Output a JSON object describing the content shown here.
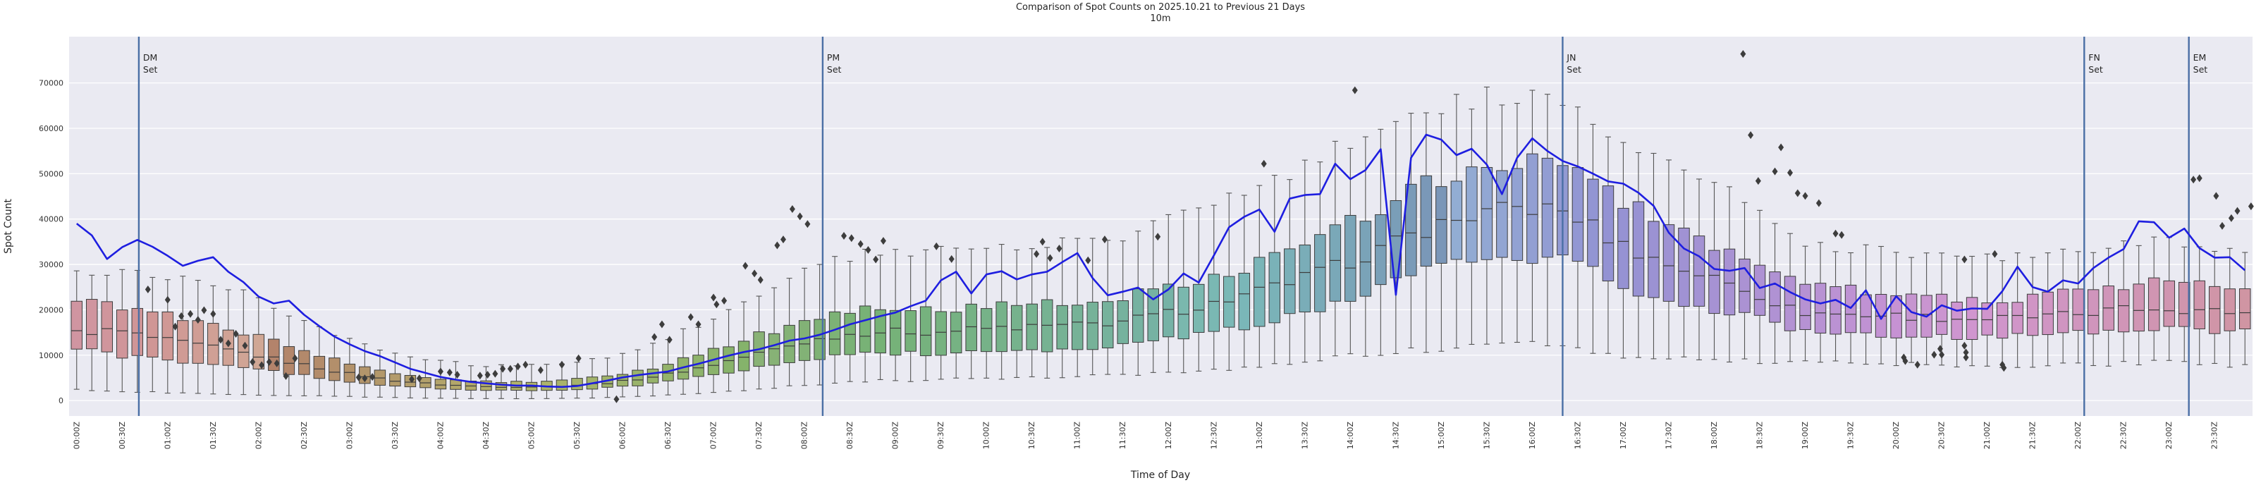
{
  "figure": {
    "title_line1": "Comparison of Spot Counts on 2025.10.21 to Previous 21 Days",
    "title_line2": "10m",
    "xlabel": "Time of Day",
    "ylabel": "Spot Count"
  },
  "colors": {
    "axes_background": "#eaeaf2",
    "grid": "#ffffff",
    "today_line": "#1e1ee0",
    "event_line": "#4a6fa5",
    "box_edge": "#3d3d3d",
    "whisker": "#555555",
    "outlier": "#3d3d3d",
    "text": "#262626"
  },
  "chart_data": {
    "type": "boxplot+line",
    "interval_minutes": 10,
    "n_boxes": 144,
    "ylim": [
      -3400,
      80200
    ],
    "y_ticks": [
      0,
      10000,
      20000,
      30000,
      40000,
      50000,
      60000,
      70000
    ],
    "y_tick_labels": [
      "0",
      "10000",
      "20000",
      "30000",
      "40000",
      "50000",
      "60000",
      "70000"
    ],
    "x_tick_labels": [
      "00:00Z",
      "00:30Z",
      "01:00Z",
      "01:30Z",
      "02:00Z",
      "02:30Z",
      "03:00Z",
      "03:30Z",
      "04:00Z",
      "04:30Z",
      "05:00Z",
      "05:30Z",
      "06:00Z",
      "06:30Z",
      "07:00Z",
      "07:30Z",
      "08:00Z",
      "08:30Z",
      "09:00Z",
      "09:30Z",
      "10:00Z",
      "10:30Z",
      "11:00Z",
      "11:30Z",
      "12:00Z",
      "12:30Z",
      "13:00Z",
      "13:30Z",
      "14:00Z",
      "14:30Z",
      "15:00Z",
      "15:30Z",
      "16:00Z",
      "16:30Z",
      "17:00Z",
      "17:30Z",
      "18:00Z",
      "18:30Z",
      "19:00Z",
      "19:30Z",
      "20:00Z",
      "20:30Z",
      "21:00Z",
      "21:30Z",
      "22:00Z",
      "22:30Z",
      "23:00Z",
      "23:30Z"
    ],
    "box_keyframes": {
      "minutes": [
        0,
        30,
        60,
        90,
        120,
        150,
        180,
        210,
        240,
        270,
        300,
        330,
        360,
        390,
        420,
        450,
        480,
        510,
        540,
        570,
        600,
        630,
        660,
        690,
        720,
        750,
        780,
        810,
        840,
        870,
        900,
        930,
        960,
        990,
        1020,
        1050,
        1080,
        1110,
        1140,
        1170,
        1200,
        1230,
        1260,
        1290,
        1320,
        1350,
        1380,
        1410,
        1440
      ],
      "median": [
        14800,
        15500,
        13500,
        12000,
        10200,
        8200,
        6200,
        4600,
        3600,
        3100,
        3000,
        3300,
        4000,
        5500,
        7500,
        10000,
        12500,
        14500,
        15300,
        15000,
        15800,
        16200,
        16500,
        17200,
        19000,
        21000,
        23500,
        26500,
        30000,
        34000,
        38500,
        41000,
        42500,
        41500,
        35000,
        30500,
        27500,
        24000,
        19500,
        19000,
        18800,
        18300,
        18000,
        18200,
        18800,
        20000,
        20500,
        19800,
        19200
      ],
      "q1": [
        11800,
        10000,
        9000,
        8200,
        7000,
        5800,
        4400,
        3300,
        2600,
        2300,
        2200,
        2400,
        2900,
        3900,
        5300,
        7000,
        8800,
        10200,
        10500,
        10200,
        10800,
        11000,
        11300,
        11800,
        13500,
        14500,
        16500,
        19000,
        22000,
        26000,
        29000,
        30500,
        31500,
        30500,
        26000,
        22000,
        20500,
        18500,
        15200,
        14800,
        14500,
        14200,
        14000,
        14200,
        14800,
        15800,
        16200,
        15500,
        15000
      ],
      "q3": [
        21800,
        21000,
        19500,
        17000,
        14500,
        11500,
        8800,
        6300,
        4900,
        4200,
        4100,
        4500,
        5500,
        7600,
        10500,
        14000,
        17000,
        19500,
        20300,
        20000,
        20800,
        21300,
        21800,
        22500,
        24500,
        27000,
        30000,
        34000,
        38500,
        43500,
        48500,
        51000,
        52500,
        51500,
        44500,
        39500,
        35000,
        30500,
        26000,
        24500,
        24000,
        23200,
        22500,
        22800,
        23800,
        25500,
        26000,
        25200,
        24500
      ],
      "whisker_low": [
        2400,
        2000,
        1800,
        1500,
        1300,
        1100,
        900,
        700,
        500,
        450,
        400,
        500,
        700,
        1100,
        1700,
        2400,
        3200,
        4000,
        4400,
        4500,
        4800,
        5000,
        5200,
        5500,
        6000,
        6500,
        7500,
        8500,
        9500,
        10500,
        11500,
        12000,
        12500,
        12000,
        10200,
        9200,
        8800,
        8600,
        8500,
        8200,
        8000,
        7800,
        7500,
        7500,
        7800,
        8200,
        8500,
        8000,
        7800
      ],
      "whisker_high": [
        28500,
        28800,
        28000,
        26000,
        23000,
        18500,
        14000,
        10500,
        8800,
        7800,
        7600,
        8200,
        9800,
        13000,
        17500,
        23000,
        28000,
        31500,
        32800,
        33000,
        33500,
        34200,
        34800,
        35800,
        39000,
        42000,
        46000,
        51000,
        56000,
        61000,
        65000,
        67000,
        68000,
        66500,
        59000,
        54000,
        49000,
        42000,
        35000,
        33500,
        33000,
        32000,
        31000,
        31500,
        32500,
        34500,
        35000,
        34000,
        33200
      ]
    },
    "today_line": {
      "name": "2025.10.21",
      "values": [
        39000,
        36400,
        31200,
        33800,
        35400,
        33900,
        31900,
        29700,
        30800,
        31600,
        28400,
        26100,
        22900,
        21400,
        22000,
        18900,
        16400,
        14100,
        12400,
        10900,
        9800,
        8400,
        7000,
        6100,
        5200,
        4600,
        4100,
        3800,
        3500,
        3300,
        3300,
        3100,
        3000,
        3200,
        3800,
        4400,
        5100,
        5600,
        6000,
        6400,
        7300,
        8100,
        9000,
        9900,
        10700,
        11300,
        12200,
        13200,
        13700,
        14500,
        15600,
        16800,
        17700,
        18600,
        19400,
        20800,
        22000,
        26500,
        28400,
        23600,
        27800,
        28500,
        26700,
        27800,
        28400,
        30500,
        32500,
        27000,
        23200,
        24000,
        24900,
        22300,
        24500,
        28000,
        26000,
        32000,
        38200,
        40500,
        42100,
        37200,
        44500,
        45300,
        45500,
        52200,
        48800,
        50800,
        55400,
        23300,
        53500,
        58600,
        57500,
        54100,
        55500,
        52000,
        45500,
        53500,
        57800,
        55000,
        52800,
        51600,
        50000,
        48300,
        47800,
        45800,
        42900,
        37000,
        33500,
        31800,
        29000,
        28600,
        29200,
        24800,
        25800,
        23900,
        22300,
        21400,
        22200,
        20400,
        24300,
        18000,
        23000,
        19500,
        18500,
        21000,
        19800,
        20300,
        20200,
        24100,
        29500,
        25000,
        24000,
        26500,
        25800,
        29200,
        31500,
        33400,
        39500,
        39300,
        35900,
        37900,
        33600,
        31500,
        31600,
        28700
      ]
    },
    "outliers": [
      [
        47,
        24500
      ],
      [
        60,
        22200
      ],
      [
        65,
        16300
      ],
      [
        69,
        18600
      ],
      [
        75,
        19100
      ],
      [
        80,
        17800
      ],
      [
        84,
        19900
      ],
      [
        90,
        19100
      ],
      [
        95,
        13400
      ],
      [
        100,
        12600
      ],
      [
        105,
        14700
      ],
      [
        111,
        12100
      ],
      [
        116,
        8500
      ],
      [
        122,
        7800
      ],
      [
        127,
        8500
      ],
      [
        132,
        8200
      ],
      [
        138,
        5400
      ],
      [
        144,
        9300
      ],
      [
        186,
        5100
      ],
      [
        190,
        4900
      ],
      [
        195,
        5200
      ],
      [
        221,
        4700
      ],
      [
        226,
        4900
      ],
      [
        240,
        6400
      ],
      [
        246,
        6200
      ],
      [
        251,
        5700
      ],
      [
        266,
        5500
      ],
      [
        271,
        5700
      ],
      [
        276,
        5900
      ],
      [
        281,
        7000
      ],
      [
        286,
        7000
      ],
      [
        291,
        7500
      ],
      [
        296,
        7900
      ],
      [
        306,
        6700
      ],
      [
        320,
        7900
      ],
      [
        331,
        9300
      ],
      [
        356,
        300
      ],
      [
        381,
        14000
      ],
      [
        386,
        16800
      ],
      [
        391,
        13400
      ],
      [
        405,
        18400
      ],
      [
        410,
        16800
      ],
      [
        420,
        22700
      ],
      [
        422,
        21200
      ],
      [
        427,
        22000
      ],
      [
        441,
        29700
      ],
      [
        447,
        28000
      ],
      [
        451,
        26600
      ],
      [
        462,
        34200
      ],
      [
        466,
        35500
      ],
      [
        472,
        42200
      ],
      [
        477,
        40600
      ],
      [
        482,
        38900
      ],
      [
        506,
        36300
      ],
      [
        511,
        35800
      ],
      [
        517,
        34500
      ],
      [
        522,
        33200
      ],
      [
        527,
        31100
      ],
      [
        532,
        35200
      ],
      [
        567,
        34000
      ],
      [
        577,
        31200
      ],
      [
        633,
        32300
      ],
      [
        637,
        35000
      ],
      [
        642,
        31400
      ],
      [
        648,
        33500
      ],
      [
        667,
        30900
      ],
      [
        678,
        35500
      ],
      [
        713,
        36100
      ],
      [
        783,
        52200
      ],
      [
        843,
        68400
      ],
      [
        1099,
        76400
      ],
      [
        1104,
        58500
      ],
      [
        1109,
        48400
      ],
      [
        1120,
        50500
      ],
      [
        1124,
        55800
      ],
      [
        1130,
        50200
      ],
      [
        1135,
        45700
      ],
      [
        1140,
        45100
      ],
      [
        1149,
        43500
      ],
      [
        1160,
        36800
      ],
      [
        1164,
        36500
      ],
      [
        1205,
        9500
      ],
      [
        1206,
        8700
      ],
      [
        1214,
        7900
      ],
      [
        1225,
        10100
      ],
      [
        1229,
        11400
      ],
      [
        1230,
        10100
      ],
      [
        1245,
        12100
      ],
      [
        1246,
        10600
      ],
      [
        1246,
        9500
      ],
      [
        1245,
        31100
      ],
      [
        1265,
        32300
      ],
      [
        1270,
        7900
      ],
      [
        1271,
        7200
      ],
      [
        1396,
        48700
      ],
      [
        1400,
        49000
      ],
      [
        1411,
        45100
      ],
      [
        1415,
        38500
      ],
      [
        1421,
        40200
      ],
      [
        1425,
        41800
      ],
      [
        1434,
        42800
      ]
    ],
    "event_lines": [
      {
        "name": "DM",
        "sub": "Set",
        "minutes": 41
      },
      {
        "name": "PM",
        "sub": "Set",
        "minutes": 492
      },
      {
        "name": "JN",
        "sub": "Set",
        "minutes": 980
      },
      {
        "name": "FN",
        "sub": "Set",
        "minutes": 1324
      },
      {
        "name": "EM",
        "sub": "Set",
        "minutes": 1393
      }
    ],
    "box_palette": {
      "type": "cyclic-hue",
      "start_hue": 348,
      "degrees_per_box": 2.5
    }
  }
}
